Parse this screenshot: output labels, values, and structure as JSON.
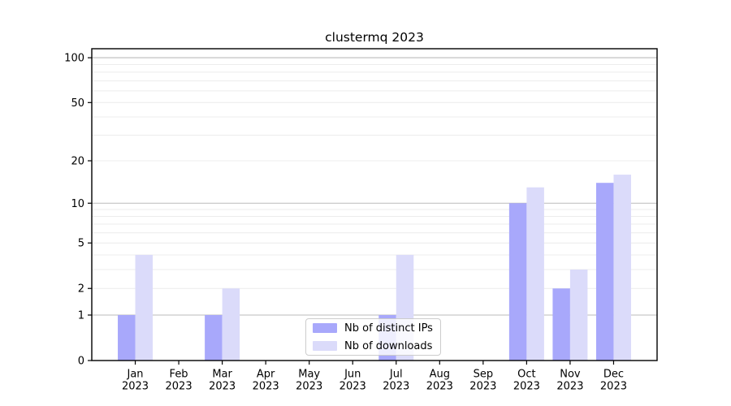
{
  "chart_data": {
    "type": "bar",
    "title": "clustermq 2023",
    "categories": [
      {
        "label": "Jan",
        "sub": "2023"
      },
      {
        "label": "Feb",
        "sub": "2023"
      },
      {
        "label": "Mar",
        "sub": "2023"
      },
      {
        "label": "Apr",
        "sub": "2023"
      },
      {
        "label": "May",
        "sub": "2023"
      },
      {
        "label": "Jun",
        "sub": "2023"
      },
      {
        "label": "Jul",
        "sub": "2023"
      },
      {
        "label": "Aug",
        "sub": "2023"
      },
      {
        "label": "Sep",
        "sub": "2023"
      },
      {
        "label": "Oct",
        "sub": "2023"
      },
      {
        "label": "Nov",
        "sub": "2023"
      },
      {
        "label": "Dec",
        "sub": "2023"
      }
    ],
    "series": [
      {
        "name": "Nb of distinct IPs",
        "color": "#a8a8fb",
        "values": [
          1,
          0,
          1,
          0,
          0,
          0,
          1,
          0,
          0,
          10,
          2,
          14
        ]
      },
      {
        "name": "Nb of downloads",
        "color": "#dbdbfa",
        "values": [
          4,
          0,
          2,
          0,
          0,
          0,
          4,
          0,
          0,
          13,
          3,
          16
        ]
      }
    ],
    "y_axis": {
      "scale": "log1p",
      "tick_values": [
        0,
        1,
        2,
        5,
        10,
        20,
        50,
        100
      ],
      "tick_labels": [
        "0",
        "1",
        "2",
        "5",
        "10",
        "20",
        "50",
        "100"
      ],
      "decade_gridlines": [
        1,
        10,
        100
      ],
      "minor_gridlines": [
        2,
        3,
        4,
        5,
        6,
        7,
        8,
        9,
        20,
        30,
        40,
        50,
        60,
        70,
        80,
        90
      ],
      "range": [
        0,
        115
      ],
      "grid": true
    },
    "legend": {
      "position": "lower-center"
    },
    "colors": {
      "major_grid": "#bbbbbb",
      "minor_grid": "#ececec",
      "axis": "#000000"
    }
  }
}
